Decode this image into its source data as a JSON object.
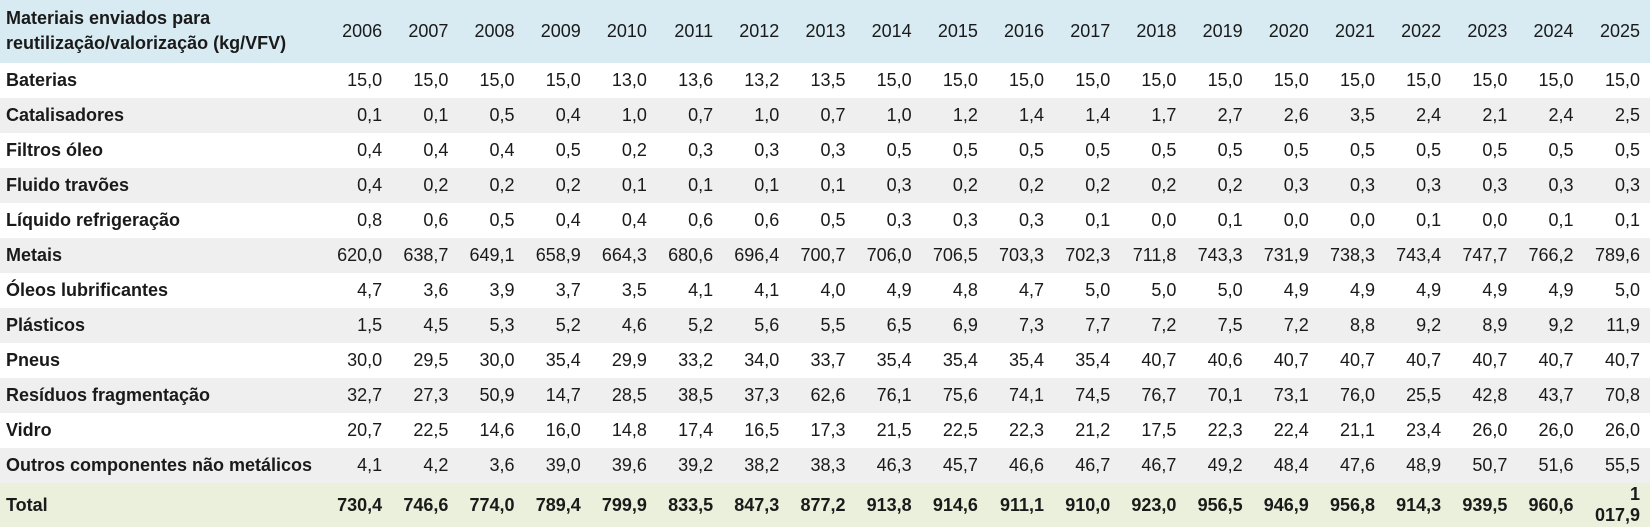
{
  "colors": {
    "header_bg": "#d8eaf2",
    "stripe_bg": "#efefef",
    "total_bg": "#eaf0db",
    "text": "#1a1a1a"
  },
  "chart_data": {
    "type": "table",
    "title": "Materiais enviados para reutilização/valorização (kg/VFV)",
    "columns": [
      "2006",
      "2007",
      "2008",
      "2009",
      "2010",
      "2011",
      "2012",
      "2013",
      "2014",
      "2015",
      "2016",
      "2017",
      "2018",
      "2019",
      "2020",
      "2021",
      "2022",
      "2023",
      "2024",
      "2025"
    ],
    "rows": [
      {
        "label": "Baterias",
        "values": [
          "15,0",
          "15,0",
          "15,0",
          "15,0",
          "13,0",
          "13,6",
          "13,2",
          "13,5",
          "15,0",
          "15,0",
          "15,0",
          "15,0",
          "15,0",
          "15,0",
          "15,0",
          "15,0",
          "15,0",
          "15,0",
          "15,0",
          "15,0"
        ]
      },
      {
        "label": "Catalisadores",
        "values": [
          "0,1",
          "0,1",
          "0,5",
          "0,4",
          "1,0",
          "0,7",
          "1,0",
          "0,7",
          "1,0",
          "1,2",
          "1,4",
          "1,4",
          "1,7",
          "2,7",
          "2,6",
          "3,5",
          "2,4",
          "2,1",
          "2,4",
          "2,5"
        ]
      },
      {
        "label": "Filtros óleo",
        "values": [
          "0,4",
          "0,4",
          "0,4",
          "0,5",
          "0,2",
          "0,3",
          "0,3",
          "0,3",
          "0,5",
          "0,5",
          "0,5",
          "0,5",
          "0,5",
          "0,5",
          "0,5",
          "0,5",
          "0,5",
          "0,5",
          "0,5",
          "0,5"
        ]
      },
      {
        "label": "Fluido travões",
        "values": [
          "0,4",
          "0,2",
          "0,2",
          "0,2",
          "0,1",
          "0,1",
          "0,1",
          "0,1",
          "0,3",
          "0,2",
          "0,2",
          "0,2",
          "0,2",
          "0,2",
          "0,3",
          "0,3",
          "0,3",
          "0,3",
          "0,3",
          "0,3"
        ]
      },
      {
        "label": "Líquido refrigeração",
        "values": [
          "0,8",
          "0,6",
          "0,5",
          "0,4",
          "0,4",
          "0,6",
          "0,6",
          "0,5",
          "0,3",
          "0,3",
          "0,3",
          "0,1",
          "0,0",
          "0,1",
          "0,0",
          "0,0",
          "0,1",
          "0,0",
          "0,1",
          "0,1"
        ]
      },
      {
        "label": "Metais",
        "values": [
          "620,0",
          "638,7",
          "649,1",
          "658,9",
          "664,3",
          "680,6",
          "696,4",
          "700,7",
          "706,0",
          "706,5",
          "703,3",
          "702,3",
          "711,8",
          "743,3",
          "731,9",
          "738,3",
          "743,4",
          "747,7",
          "766,2",
          "789,6"
        ]
      },
      {
        "label": "Óleos lubrificantes",
        "values": [
          "4,7",
          "3,6",
          "3,9",
          "3,7",
          "3,5",
          "4,1",
          "4,1",
          "4,0",
          "4,9",
          "4,8",
          "4,7",
          "5,0",
          "5,0",
          "5,0",
          "4,9",
          "4,9",
          "4,9",
          "4,9",
          "4,9",
          "5,0"
        ]
      },
      {
        "label": "Plásticos",
        "values": [
          "1,5",
          "4,5",
          "5,3",
          "5,2",
          "4,6",
          "5,2",
          "5,6",
          "5,5",
          "6,5",
          "6,9",
          "7,3",
          "7,7",
          "7,2",
          "7,5",
          "7,2",
          "8,8",
          "9,2",
          "8,9",
          "9,2",
          "11,9"
        ]
      },
      {
        "label": "Pneus",
        "values": [
          "30,0",
          "29,5",
          "30,0",
          "35,4",
          "29,9",
          "33,2",
          "34,0",
          "33,7",
          "35,4",
          "35,4",
          "35,4",
          "35,4",
          "40,7",
          "40,6",
          "40,7",
          "40,7",
          "40,7",
          "40,7",
          "40,7",
          "40,7"
        ]
      },
      {
        "label": "Resíduos fragmentação",
        "values": [
          "32,7",
          "27,3",
          "50,9",
          "14,7",
          "28,5",
          "38,5",
          "37,3",
          "62,6",
          "76,1",
          "75,6",
          "74,1",
          "74,5",
          "76,7",
          "70,1",
          "73,1",
          "76,0",
          "25,5",
          "42,8",
          "43,7",
          "70,8"
        ]
      },
      {
        "label": "Vidro",
        "values": [
          "20,7",
          "22,5",
          "14,6",
          "16,0",
          "14,8",
          "17,4",
          "16,5",
          "17,3",
          "21,5",
          "22,5",
          "22,3",
          "21,2",
          "17,5",
          "22,3",
          "22,4",
          "21,1",
          "23,4",
          "26,0",
          "26,0",
          "26,0"
        ]
      },
      {
        "label": "Outros componentes não metálicos",
        "values": [
          "4,1",
          "4,2",
          "3,6",
          "39,0",
          "39,6",
          "39,2",
          "38,2",
          "38,3",
          "46,3",
          "45,7",
          "46,6",
          "46,7",
          "46,7",
          "49,2",
          "48,4",
          "47,6",
          "48,9",
          "50,7",
          "51,6",
          "55,5"
        ]
      }
    ],
    "total_row": {
      "label": "Total",
      "values": [
        "730,4",
        "746,6",
        "774,0",
        "789,4",
        "799,9",
        "833,5",
        "847,3",
        "877,2",
        "913,8",
        "914,6",
        "911,1",
        "910,0",
        "923,0",
        "956,5",
        "946,9",
        "956,8",
        "914,3",
        "939,5",
        "960,6",
        "1 017,9"
      ]
    }
  }
}
